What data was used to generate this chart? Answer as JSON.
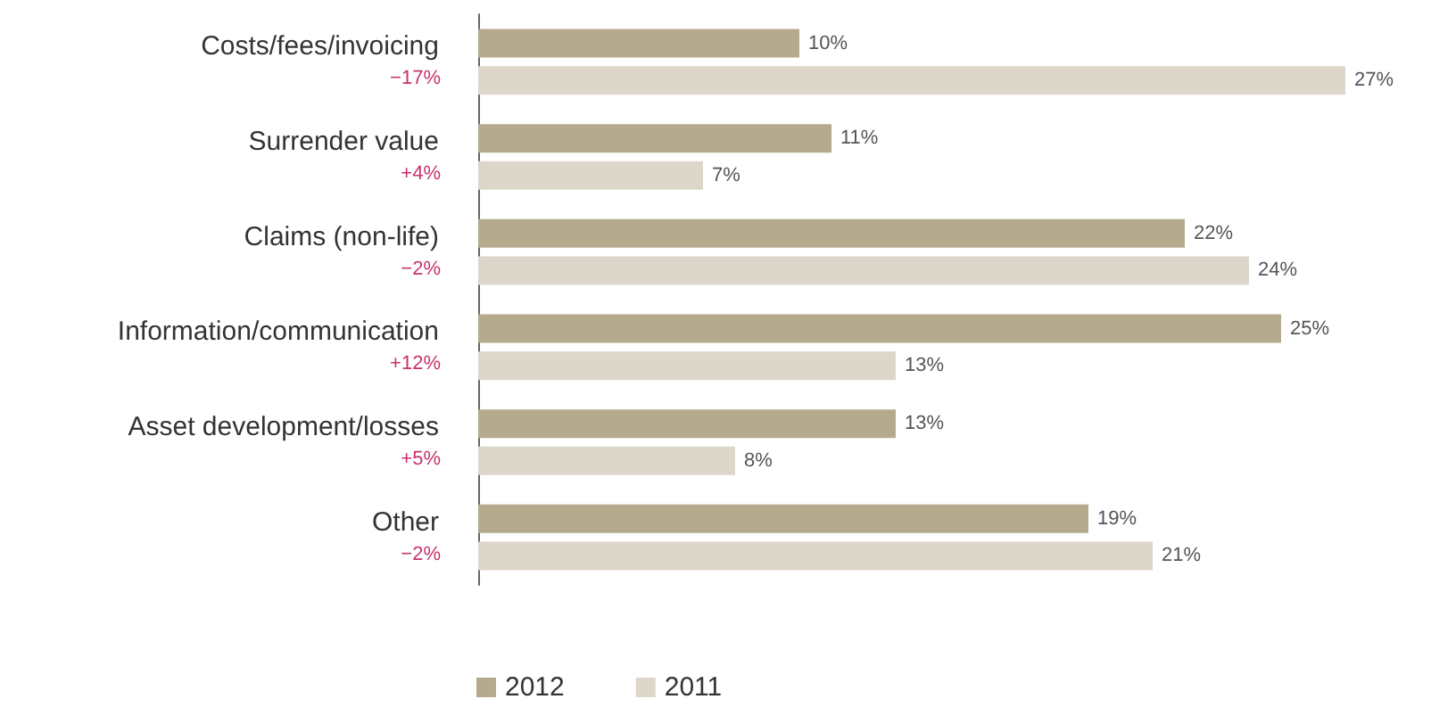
{
  "chart_data": {
    "type": "bar",
    "orientation": "horizontal",
    "categories": [
      "Costs/fees/invoicing",
      "Surrender value",
      "Claims (non-life)",
      "Information/communication",
      "Asset development/losses",
      "Other"
    ],
    "series": [
      {
        "name": "2012",
        "color": "#b5aa8e",
        "values": [
          10,
          11,
          22,
          25,
          13,
          19
        ],
        "value_labels": [
          "10%",
          "11%",
          "22%",
          "25%",
          "13%",
          "19%"
        ]
      },
      {
        "name": "2011",
        "color": "#ddd6ca",
        "values": [
          27,
          7,
          24,
          13,
          8,
          21
        ],
        "value_labels": [
          "27%",
          "7%",
          "24%",
          "13%",
          "8%",
          "21%"
        ]
      }
    ],
    "annotations": [
      "−17%",
      "+4%",
      "−2%",
      "+12%",
      "+5%",
      "−2%"
    ],
    "legend": "bottom",
    "grid": false
  }
}
